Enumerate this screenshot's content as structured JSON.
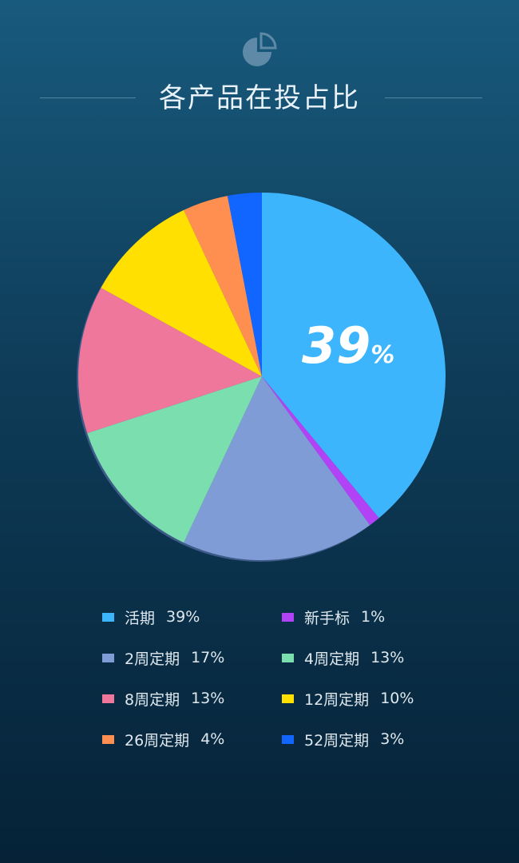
{
  "header": {
    "icon": "pie-chart-icon",
    "title": "各产品在投占比"
  },
  "chart_data": {
    "type": "pie",
    "title": "各产品在投占比",
    "categories": [
      "活期",
      "新手标",
      "2周定期",
      "4周定期",
      "8周定期",
      "12周定期",
      "26周定期",
      "52周定期"
    ],
    "values": [
      39,
      1,
      17,
      13,
      13,
      10,
      4,
      3
    ],
    "colors": [
      "#3db5fd",
      "#b142f5",
      "#7f9cd6",
      "#7adeae",
      "#f0779c",
      "#ffe000",
      "#fe8f50",
      "#1166ff"
    ],
    "highlight_index": 0,
    "highlight_label": "39%",
    "legend_placement": "bottom",
    "legend": [
      {
        "name": "活期",
        "value": "39%"
      },
      {
        "name": "新手标",
        "value": "1%"
      },
      {
        "name": "2周定期",
        "value": "17%"
      },
      {
        "name": "4周定期",
        "value": "13%"
      },
      {
        "name": "8周定期",
        "value": "13%"
      },
      {
        "name": "12周定期",
        "value": "10%"
      },
      {
        "name": "26周定期",
        "value": "4%"
      },
      {
        "name": "52周定期",
        "value": "3%"
      }
    ]
  },
  "colors": {
    "ring": "#3d5a88",
    "icon": "#5e8aa7"
  }
}
